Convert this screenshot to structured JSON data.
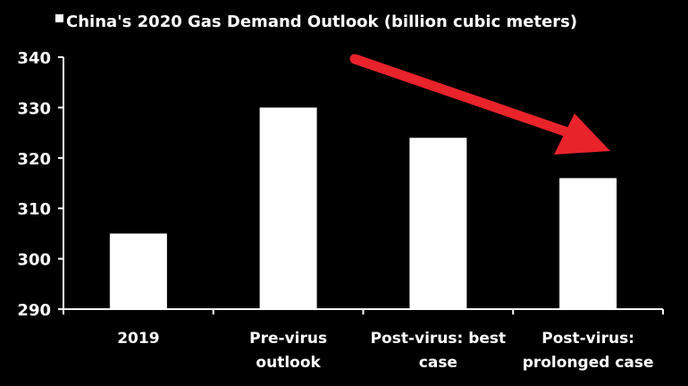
{
  "chart_data": {
    "type": "bar",
    "categories": [
      [
        "2019"
      ],
      [
        "Pre-virus",
        "outlook"
      ],
      [
        "Post-virus: best",
        "case"
      ],
      [
        "Post-virus:",
        "prolonged case"
      ]
    ],
    "series": [
      {
        "name": "China's 2020 Gas Demand Outlook (billion cubic meters)",
        "values": [
          305,
          330,
          324,
          316
        ]
      }
    ],
    "ylim": [
      290,
      340
    ],
    "yticks": [
      290,
      300,
      310,
      320,
      330,
      340
    ],
    "grid": false,
    "legend": "top-left",
    "annotation": "red downward arrow",
    "colors": {
      "background": "#000000",
      "bars": "#ffffff",
      "axis": "#ffffff",
      "arrow": "#e8232a"
    }
  }
}
